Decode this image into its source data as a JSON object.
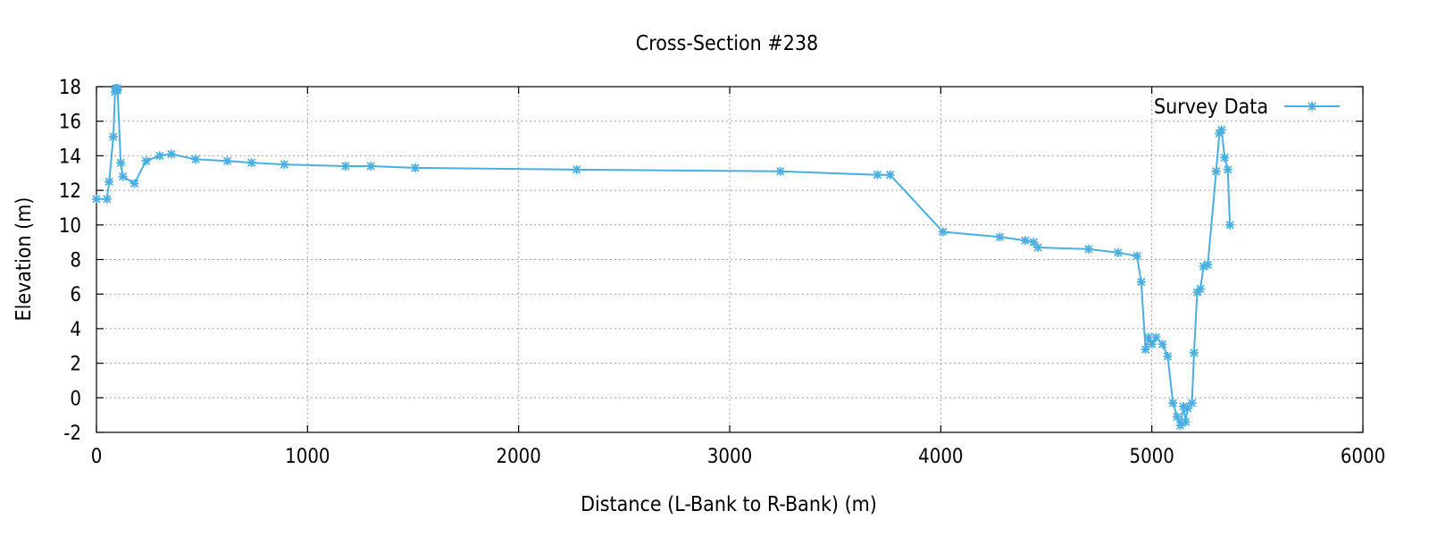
{
  "chart_data": {
    "type": "line",
    "title": "Cross-Section #238",
    "xlabel": "Distance (L-Bank to R-Bank) (m)",
    "ylabel": "Elevation (m)",
    "xlim": [
      0,
      6000
    ],
    "ylim": [
      -2,
      18
    ],
    "xticks": [
      0,
      1000,
      2000,
      3000,
      4000,
      5000,
      6000
    ],
    "yticks": [
      -2,
      0,
      2,
      4,
      6,
      8,
      10,
      12,
      14,
      16,
      18
    ],
    "grid": true,
    "legend_position": "top-right",
    "colors": {
      "series": "#4aaee0"
    },
    "series": [
      {
        "name": "Survey Data",
        "x": [
          0,
          50,
          60,
          80,
          88,
          92,
          95,
          98,
          100,
          115,
          125,
          180,
          235,
          300,
          355,
          470,
          620,
          735,
          890,
          1180,
          1300,
          1510,
          2275,
          3240,
          3700,
          3760,
          4010,
          4280,
          4400,
          4440,
          4460,
          4700,
          4840,
          4930,
          4950,
          4970,
          4985,
          5000,
          5020,
          5050,
          5075,
          5100,
          5120,
          5135,
          5150,
          5160,
          5170,
          5190,
          5200,
          5215,
          5230,
          5245,
          5265,
          5305,
          5320,
          5330,
          5345,
          5360,
          5370
        ],
        "y": [
          11.5,
          11.5,
          12.5,
          15.1,
          17.7,
          17.9,
          17.8,
          17.9,
          17.8,
          13.6,
          12.8,
          12.4,
          13.7,
          14.0,
          14.1,
          13.8,
          13.7,
          13.6,
          13.5,
          13.4,
          13.4,
          13.3,
          13.2,
          13.1,
          12.9,
          12.9,
          9.6,
          9.3,
          9.1,
          9.0,
          8.7,
          8.6,
          8.4,
          8.2,
          6.7,
          2.8,
          3.5,
          3.1,
          3.5,
          3.1,
          2.4,
          -0.3,
          -1.1,
          -1.6,
          -0.5,
          -1.4,
          -0.6,
          -0.3,
          2.6,
          6.1,
          6.3,
          7.6,
          7.7,
          13.1,
          15.3,
          15.5,
          13.9,
          13.2,
          10.0
        ]
      }
    ]
  }
}
